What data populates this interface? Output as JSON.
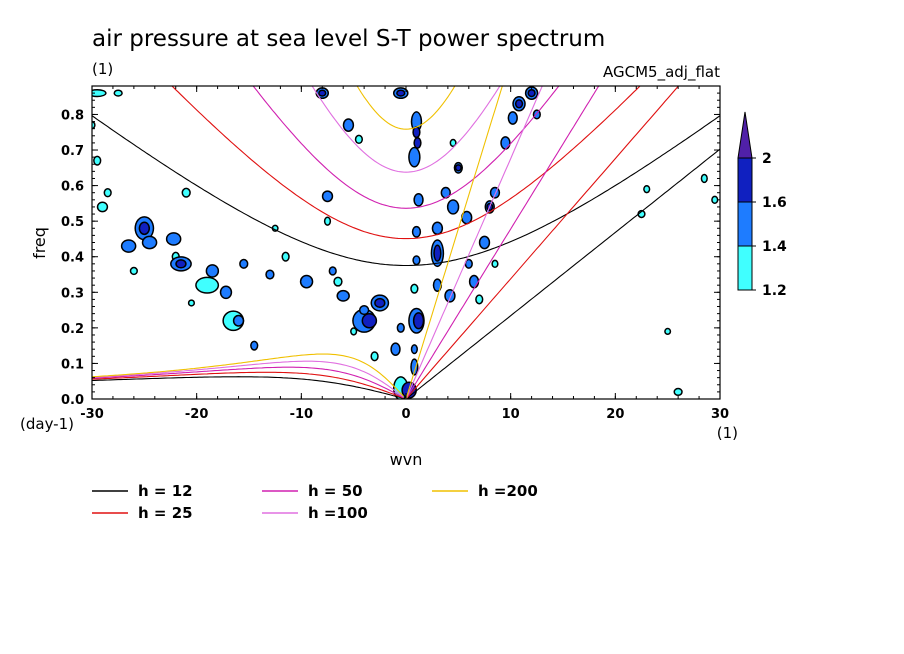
{
  "chart_data": {
    "type": "contour",
    "title": "air pressure at sea level S-T power spectrum",
    "title_units": "(1)",
    "model_label": "AGCM5_adj_flat",
    "xlabel": "wvn",
    "x_units": "(1)",
    "ylabel": "freq",
    "y_units": "(day-1)",
    "xlim": [
      -30,
      30
    ],
    "ylim": [
      0,
      0.88
    ],
    "x_ticks": [
      "-30",
      "-20",
      "-10",
      "0",
      "10",
      "20",
      "30"
    ],
    "x_tick_values": [
      -30,
      -20,
      -10,
      0,
      10,
      20,
      30
    ],
    "y_ticks": [
      "0.0",
      "0.1",
      "0.2",
      "0.3",
      "0.4",
      "0.5",
      "0.6",
      "0.7",
      "0.8"
    ],
    "y_tick_values": [
      0,
      0.1,
      0.2,
      0.3,
      0.4,
      0.5,
      0.6,
      0.7,
      0.8
    ],
    "colorbar": {
      "levels": [
        "1.2",
        "1.4",
        "1.6",
        "2"
      ],
      "level_values": [
        1.2,
        1.4,
        1.6,
        2.0
      ],
      "colors": [
        "#40ffff",
        "#1e7cff",
        "#1020c0",
        "#5020a8"
      ],
      "extend": "max"
    },
    "dispersion_curves": [
      {
        "name": "h = 12",
        "h": 12,
        "color": "#000000"
      },
      {
        "name": "h = 25",
        "h": 25,
        "color": "#e01010"
      },
      {
        "name": "h = 50",
        "h": 50,
        "color": "#d020b0"
      },
      {
        "name": "h =100",
        "h": 100,
        "color": "#e070e0"
      },
      {
        "name": "h =200",
        "h": 200,
        "color": "#f0c000"
      }
    ],
    "contour_regions": [
      {
        "x": -29.5,
        "y": 0.86,
        "w": 1.5,
        "h": 0.015,
        "level": 1
      },
      {
        "x": -27.5,
        "y": 0.86,
        "w": 0.6,
        "h": 0.012,
        "level": 1
      },
      {
        "x": -26.5,
        "y": 0.43,
        "w": 1.2,
        "h": 0.03,
        "level": 2
      },
      {
        "x": -25,
        "y": 0.48,
        "w": 1.6,
        "h": 0.06,
        "level": 2
      },
      {
        "x": -25,
        "y": 0.48,
        "w": 0.8,
        "h": 0.03,
        "level": 3
      },
      {
        "x": -24.5,
        "y": 0.44,
        "w": 1.2,
        "h": 0.03,
        "level": 2
      },
      {
        "x": -22.2,
        "y": 0.45,
        "w": 1.2,
        "h": 0.03,
        "level": 2
      },
      {
        "x": -22,
        "y": 0.4,
        "w": 0.5,
        "h": 0.02,
        "level": 1
      },
      {
        "x": -21.5,
        "y": 0.38,
        "w": 1.8,
        "h": 0.035,
        "level": 2
      },
      {
        "x": -21.5,
        "y": 0.38,
        "w": 0.8,
        "h": 0.018,
        "level": 3
      },
      {
        "x": -19,
        "y": 0.32,
        "w": 2.0,
        "h": 0.04,
        "level": 1
      },
      {
        "x": -18.5,
        "y": 0.36,
        "w": 1.0,
        "h": 0.03,
        "level": 2
      },
      {
        "x": -17.2,
        "y": 0.3,
        "w": 0.9,
        "h": 0.03,
        "level": 2
      },
      {
        "x": -16.5,
        "y": 0.22,
        "w": 1.8,
        "h": 0.05,
        "level": 1
      },
      {
        "x": -16,
        "y": 0.22,
        "w": 0.8,
        "h": 0.025,
        "level": 2
      },
      {
        "x": -14.5,
        "y": 0.15,
        "w": 0.5,
        "h": 0.02,
        "level": 2
      },
      {
        "x": -15.5,
        "y": 0.38,
        "w": 0.6,
        "h": 0.02,
        "level": 2
      },
      {
        "x": -13,
        "y": 0.35,
        "w": 0.6,
        "h": 0.02,
        "level": 2
      },
      {
        "x": -11.5,
        "y": 0.4,
        "w": 0.5,
        "h": 0.02,
        "level": 1
      },
      {
        "x": -9.5,
        "y": 0.33,
        "w": 1.0,
        "h": 0.03,
        "level": 2
      },
      {
        "x": -7,
        "y": 0.36,
        "w": 0.5,
        "h": 0.018,
        "level": 2
      },
      {
        "x": -6.5,
        "y": 0.33,
        "w": 0.6,
        "h": 0.02,
        "level": 1
      },
      {
        "x": -6,
        "y": 0.29,
        "w": 1.0,
        "h": 0.025,
        "level": 2
      },
      {
        "x": -7.5,
        "y": 0.57,
        "w": 0.8,
        "h": 0.025,
        "level": 2
      },
      {
        "x": -7.5,
        "y": 0.5,
        "w": 0.4,
        "h": 0.018,
        "level": 1
      },
      {
        "x": -5,
        "y": 0.19,
        "w": 0.4,
        "h": 0.015,
        "level": 1
      },
      {
        "x": -3,
        "y": 0.12,
        "w": 0.5,
        "h": 0.02,
        "level": 1
      },
      {
        "x": -4,
        "y": 0.22,
        "w": 2.0,
        "h": 0.06,
        "level": 2
      },
      {
        "x": -3.5,
        "y": 0.22,
        "w": 1.2,
        "h": 0.035,
        "level": 3
      },
      {
        "x": -4,
        "y": 0.25,
        "w": 0.7,
        "h": 0.02,
        "level": 2
      },
      {
        "x": -2.5,
        "y": 0.27,
        "w": 1.5,
        "h": 0.04,
        "level": 2
      },
      {
        "x": -2.5,
        "y": 0.27,
        "w": 0.8,
        "h": 0.02,
        "level": 3
      },
      {
        "x": -1,
        "y": 0.14,
        "w": 0.7,
        "h": 0.03,
        "level": 2
      },
      {
        "x": -0.5,
        "y": 0.2,
        "w": 0.5,
        "h": 0.02,
        "level": 2
      },
      {
        "x": -0.5,
        "y": 0.03,
        "w": 1.2,
        "h": 0.06,
        "level": 1
      },
      {
        "x": 0.3,
        "y": 0.025,
        "w": 1.2,
        "h": 0.04,
        "level": 3
      },
      {
        "x": 0.8,
        "y": 0.09,
        "w": 0.5,
        "h": 0.04,
        "level": 2
      },
      {
        "x": 1.0,
        "y": 0.22,
        "w": 1.3,
        "h": 0.065,
        "level": 2
      },
      {
        "x": 1.2,
        "y": 0.22,
        "w": 0.8,
        "h": 0.04,
        "level": 3
      },
      {
        "x": 0.8,
        "y": 0.14,
        "w": 0.4,
        "h": 0.02,
        "level": 2
      },
      {
        "x": 0.8,
        "y": 0.31,
        "w": 0.5,
        "h": 0.02,
        "level": 1
      },
      {
        "x": 1.0,
        "y": 0.78,
        "w": 0.8,
        "h": 0.05,
        "level": 2
      },
      {
        "x": 1.0,
        "y": 0.75,
        "w": 0.5,
        "h": 0.025,
        "level": 3
      },
      {
        "x": 0.8,
        "y": 0.68,
        "w": 0.9,
        "h": 0.05,
        "level": 2
      },
      {
        "x": 1.1,
        "y": 0.72,
        "w": 0.5,
        "h": 0.025,
        "level": 3
      },
      {
        "x": 1.2,
        "y": 0.56,
        "w": 0.7,
        "h": 0.03,
        "level": 2
      },
      {
        "x": 1.0,
        "y": 0.47,
        "w": 0.6,
        "h": 0.025,
        "level": 2
      },
      {
        "x": 1.0,
        "y": 0.39,
        "w": 0.5,
        "h": 0.02,
        "level": 2
      },
      {
        "x": 3.0,
        "y": 0.41,
        "w": 1.0,
        "h": 0.07,
        "level": 2
      },
      {
        "x": 3.0,
        "y": 0.41,
        "w": 0.5,
        "h": 0.04,
        "level": 3
      },
      {
        "x": 3.0,
        "y": 0.48,
        "w": 0.8,
        "h": 0.03,
        "level": 2
      },
      {
        "x": 3.0,
        "y": 0.32,
        "w": 0.6,
        "h": 0.03,
        "level": 2
      },
      {
        "x": 4.2,
        "y": 0.29,
        "w": 0.8,
        "h": 0.03,
        "level": 2
      },
      {
        "x": 4.5,
        "y": 0.54,
        "w": 0.9,
        "h": 0.035,
        "level": 2
      },
      {
        "x": 3.8,
        "y": 0.58,
        "w": 0.7,
        "h": 0.025,
        "level": 2
      },
      {
        "x": 5.0,
        "y": 0.65,
        "w": 0.6,
        "h": 0.025,
        "level": 2
      },
      {
        "x": 5.0,
        "y": 0.65,
        "w": 0.3,
        "h": 0.012,
        "level": 3
      },
      {
        "x": 5.8,
        "y": 0.51,
        "w": 0.8,
        "h": 0.03,
        "level": 2
      },
      {
        "x": 6.0,
        "y": 0.38,
        "w": 0.5,
        "h": 0.02,
        "level": 2
      },
      {
        "x": 6.5,
        "y": 0.33,
        "w": 0.7,
        "h": 0.03,
        "level": 2
      },
      {
        "x": 7.0,
        "y": 0.28,
        "w": 0.5,
        "h": 0.02,
        "level": 1
      },
      {
        "x": 7.5,
        "y": 0.44,
        "w": 0.8,
        "h": 0.03,
        "level": 2
      },
      {
        "x": 8.0,
        "y": 0.54,
        "w": 0.7,
        "h": 0.03,
        "level": 2
      },
      {
        "x": 8.0,
        "y": 0.54,
        "w": 0.35,
        "h": 0.015,
        "level": 3
      },
      {
        "x": 8.5,
        "y": 0.58,
        "w": 0.7,
        "h": 0.025,
        "level": 2
      },
      {
        "x": 9.5,
        "y": 0.72,
        "w": 0.7,
        "h": 0.03,
        "level": 2
      },
      {
        "x": 10.2,
        "y": 0.79,
        "w": 0.7,
        "h": 0.03,
        "level": 2
      },
      {
        "x": 10.8,
        "y": 0.83,
        "w": 1.0,
        "h": 0.035,
        "level": 2
      },
      {
        "x": 10.8,
        "y": 0.83,
        "w": 0.5,
        "h": 0.018,
        "level": 3
      },
      {
        "x": 12.0,
        "y": 0.86,
        "w": 1.0,
        "h": 0.03,
        "level": 2
      },
      {
        "x": 12.0,
        "y": 0.86,
        "w": 0.5,
        "h": 0.015,
        "level": 3
      },
      {
        "x": 12.5,
        "y": 0.8,
        "w": 0.5,
        "h": 0.02,
        "level": 2
      },
      {
        "x": -8,
        "y": 0.86,
        "w": 1.0,
        "h": 0.025,
        "level": 2
      },
      {
        "x": -8,
        "y": 0.86,
        "w": 0.5,
        "h": 0.012,
        "level": 3
      },
      {
        "x": -5.5,
        "y": 0.77,
        "w": 0.8,
        "h": 0.03,
        "level": 2
      },
      {
        "x": -4.5,
        "y": 0.73,
        "w": 0.5,
        "h": 0.018,
        "level": 1
      },
      {
        "x": -0.5,
        "y": 0.86,
        "w": 1.2,
        "h": 0.025,
        "level": 2
      },
      {
        "x": -0.5,
        "y": 0.86,
        "w": 0.6,
        "h": 0.012,
        "level": 3
      },
      {
        "x": -29.5,
        "y": 0.67,
        "w": 0.5,
        "h": 0.02,
        "level": 1
      },
      {
        "x": -28.5,
        "y": 0.58,
        "w": 0.5,
        "h": 0.018,
        "level": 1
      },
      {
        "x": -29,
        "y": 0.54,
        "w": 0.8,
        "h": 0.022,
        "level": 1
      },
      {
        "x": -21,
        "y": 0.58,
        "w": 0.6,
        "h": 0.02,
        "level": 1
      },
      {
        "x": -30,
        "y": 0.77,
        "w": 0.4,
        "h": 0.015,
        "level": 1
      },
      {
        "x": 23,
        "y": 0.59,
        "w": 0.4,
        "h": 0.015,
        "level": 1
      },
      {
        "x": 28.5,
        "y": 0.62,
        "w": 0.4,
        "h": 0.018,
        "level": 1
      },
      {
        "x": 29.5,
        "y": 0.56,
        "w": 0.4,
        "h": 0.015,
        "level": 1
      },
      {
        "x": 22.5,
        "y": 0.52,
        "w": 0.5,
        "h": 0.015,
        "level": 1
      },
      {
        "x": 26,
        "y": 0.02,
        "w": 0.6,
        "h": 0.015,
        "level": 1
      },
      {
        "x": 25,
        "y": 0.19,
        "w": 0.3,
        "h": 0.012,
        "level": 1
      },
      {
        "x": 8.5,
        "y": 0.38,
        "w": 0.4,
        "h": 0.015,
        "level": 1
      },
      {
        "x": 4.5,
        "y": 0.72,
        "w": 0.3,
        "h": 0.015,
        "level": 1
      },
      {
        "x": -12.5,
        "y": 0.48,
        "w": 0.3,
        "h": 0.012,
        "level": 1
      },
      {
        "x": -20.5,
        "y": 0.27,
        "w": 0.4,
        "h": 0.012,
        "level": 1
      },
      {
        "x": -26,
        "y": 0.36,
        "w": 0.5,
        "h": 0.015,
        "level": 1
      }
    ]
  }
}
